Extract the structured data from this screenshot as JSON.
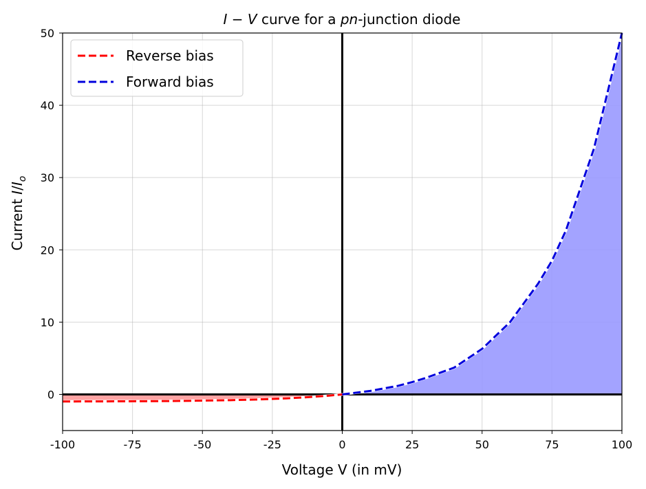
{
  "chart_data": {
    "type": "line",
    "title": "I − V curve for a pn-junction diode",
    "title_parts": {
      "i": "I",
      "minus": " − ",
      "v": "V",
      "mid": " curve for a ",
      "pn": "pn",
      "end": "-junction diode"
    },
    "xlabel": "Voltage V (in mV)",
    "ylabel_parts": {
      "prefix": "Current ",
      "i": "I",
      "slash": "/",
      "io": "I",
      "sub": "o"
    },
    "xlim": [
      -100,
      100
    ],
    "ylim": [
      -5,
      50
    ],
    "xticks": [
      -100,
      -75,
      -50,
      -25,
      0,
      25,
      50,
      75,
      100
    ],
    "xtick_labels": [
      "-100",
      "-75",
      "-50",
      "-25",
      "0",
      "25",
      "50",
      "75",
      "100"
    ],
    "yticks": [
      0,
      10,
      20,
      30,
      40,
      50
    ],
    "ytick_labels": [
      "0",
      "10",
      "20",
      "30",
      "40",
      "50"
    ],
    "grid": true,
    "legend_position": "top-left",
    "series": [
      {
        "name": "Reverse bias",
        "color": "#ff0000",
        "fill": "#ff9999",
        "style": "dashed",
        "x": [
          -100,
          -90,
          -80,
          -70,
          -60,
          -50,
          -40,
          -30,
          -25,
          -20,
          -15,
          -10,
          -5,
          0
        ],
        "y": [
          -0.98,
          -0.97,
          -0.96,
          -0.94,
          -0.91,
          -0.86,
          -0.8,
          -0.7,
          -0.62,
          -0.55,
          -0.45,
          -0.32,
          -0.18,
          0
        ]
      },
      {
        "name": "Forward bias",
        "color": "#0000dd",
        "fill": "#9999ff",
        "style": "dashed",
        "x": [
          0,
          10,
          20,
          25,
          30,
          40,
          50,
          60,
          70,
          75,
          80,
          90,
          100
        ],
        "y": [
          0,
          0.48,
          1.19,
          1.7,
          2.3,
          3.7,
          6.3,
          10.0,
          15.3,
          18.5,
          22.7,
          34.0,
          50.0
        ]
      }
    ]
  }
}
